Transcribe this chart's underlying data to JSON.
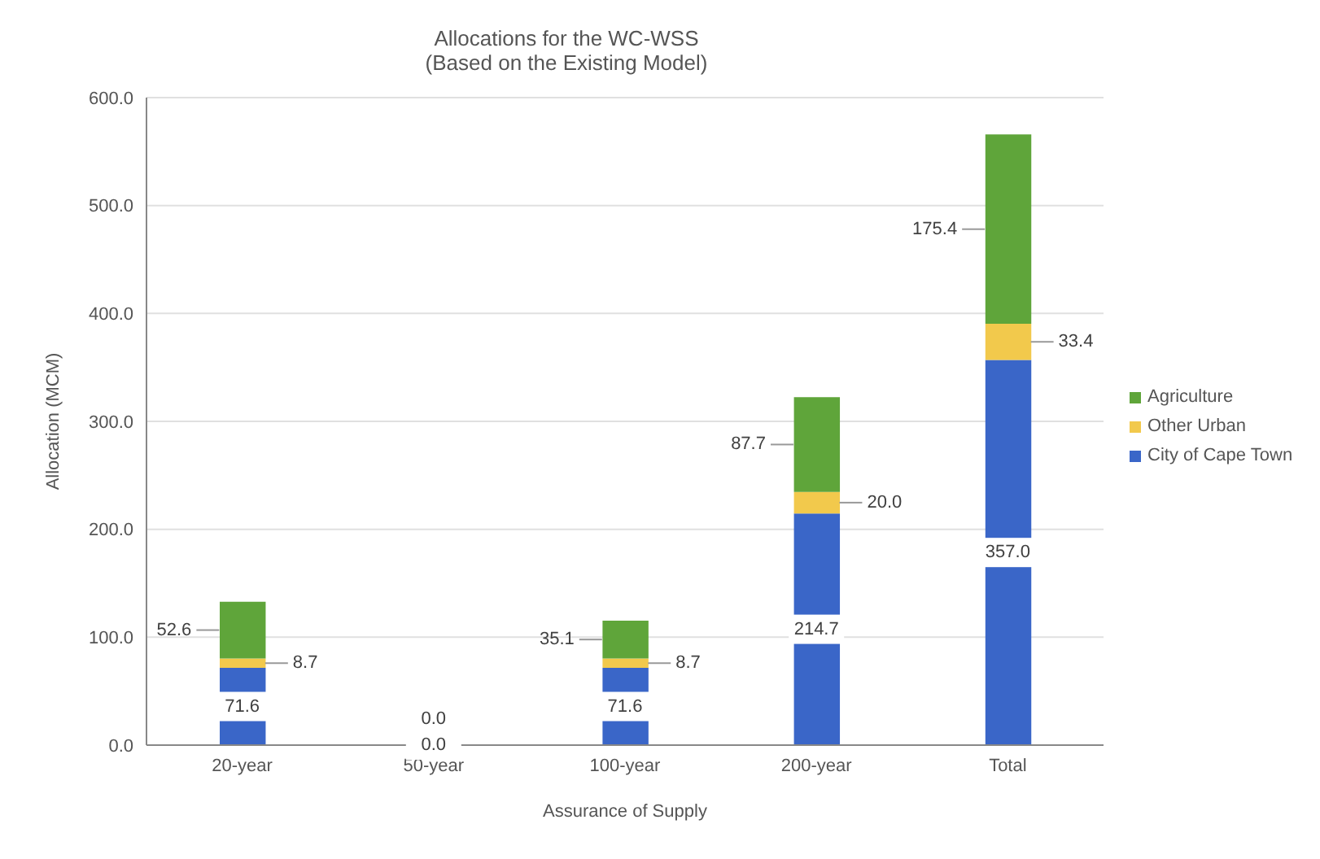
{
  "chart_data": {
    "type": "bar",
    "stacked": true,
    "title": "Allocations for the WC-WSS",
    "subtitle": "(Based on the Existing Model)",
    "xlabel": "Assurance of Supply",
    "ylabel": "Allocation (MCM)",
    "categories": [
      "20-year",
      "50-year",
      "100-year",
      "200-year",
      "Total"
    ],
    "series": [
      {
        "name": "City of Cape Town",
        "color": "#3a66c8",
        "values": [
          71.6,
          0.0,
          71.6,
          214.7,
          357.0
        ],
        "value_labels": [
          "71.6",
          "0.0",
          "71.6",
          "214.7",
          "357.0"
        ]
      },
      {
        "name": "Other Urban",
        "color": "#f2c94c",
        "values": [
          8.7,
          0.0,
          8.7,
          20.0,
          33.4
        ],
        "value_labels": [
          "8.7",
          "0.0",
          "8.7",
          "20.0",
          "33.4"
        ]
      },
      {
        "name": "Agriculture",
        "color": "#5fa53a",
        "values": [
          52.6,
          0.0,
          35.1,
          87.7,
          175.4
        ],
        "value_labels": [
          "52.6",
          null,
          "35.1",
          "87.7",
          "175.4"
        ]
      }
    ],
    "ylim": [
      0,
      600
    ],
    "yticks": [
      {
        "value": 0,
        "label": "0.0"
      },
      {
        "value": 100,
        "label": "100.0"
      },
      {
        "value": 200,
        "label": "200.0"
      },
      {
        "value": 300,
        "label": "300.0"
      },
      {
        "value": 400,
        "label": "400.0"
      },
      {
        "value": 500,
        "label": "500.0"
      },
      {
        "value": 600,
        "label": "600.0"
      }
    ],
    "grid": "y",
    "legend": "right"
  }
}
